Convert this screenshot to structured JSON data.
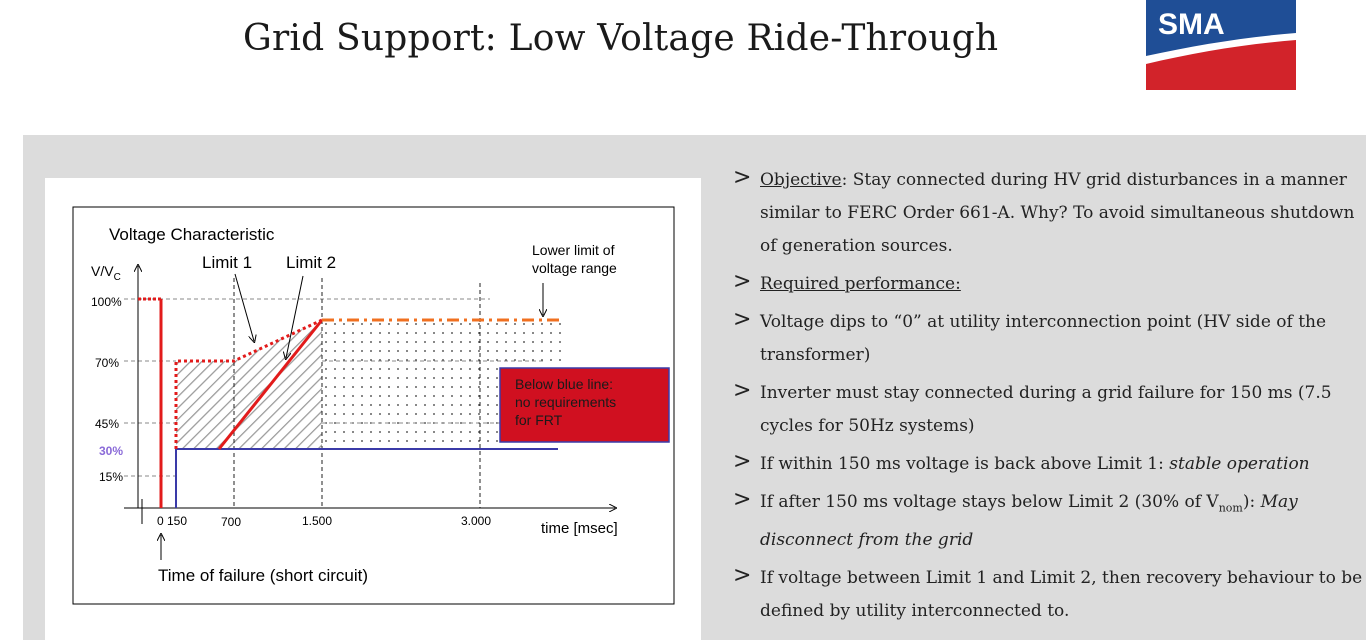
{
  "title": "Grid Support: Low Voltage Ride-Through",
  "logo": {
    "text": "SMA",
    "colors": {
      "blue": "#1f4e96",
      "red": "#d2232a"
    }
  },
  "diagram": {
    "heading": "Voltage Characteristic",
    "y_axis_label": "V/V",
    "y_axis_sub": "C",
    "x_axis_label": "time [msec]",
    "limit1": "Limit 1",
    "limit2": "Limit 2",
    "lower_limit": [
      "Lower limit of",
      "voltage range"
    ],
    "y_ticks": [
      "100%",
      "70%",
      "45%",
      "30%",
      "15%"
    ],
    "x_ticks": [
      "0 150",
      "700",
      "1.500",
      "3.000"
    ],
    "red_box": [
      "Below blue line:",
      "no requirements",
      "for FRT"
    ],
    "failure_note": "Time of failure (short circuit)",
    "colors": {
      "red": "#e21b1b",
      "blue": "#3a3aa8",
      "orange": "#f07020",
      "purple": "#8a6ad8",
      "box": "#d01020"
    }
  },
  "bullets": {
    "b1_label": "Objective",
    "b1_text": ": Stay connected during HV grid disturbances in a manner similar to FERC Order 661-A. Why? To avoid simultaneous shutdown of generation sources.",
    "b2_label": "Required performance:",
    "b3_text": "Voltage dips to “0” at utility interconnection point (HV side of the transformer)",
    "b4_text": "Inverter must stay connected during a grid failure for 150 ms (7.5 cycles for 50Hz systems)",
    "b5_text": "If within 150 ms voltage is back above Limit 1: ",
    "b5_italic": "stable operation",
    "b6_text_a": "If after 150 ms voltage stays below Limit 2 (30% of V",
    "b6_sub": "nom",
    "b6_text_b": "):  ",
    "b6_italic": "May disconnect from the grid",
    "b7_text": "If voltage between Limit 1 and Limit 2, then recovery behaviour to be defined by utility interconnected to."
  }
}
